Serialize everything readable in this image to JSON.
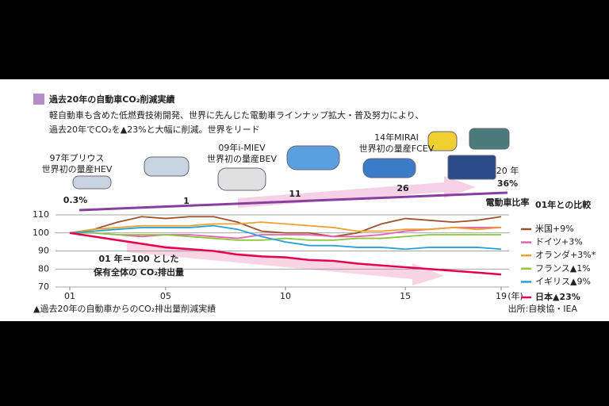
{
  "title": "過去20年の自動車CO₂削減実績",
  "subtitle": [
    "軽自動車も含めた低燃費技術開発、世界に先んじた電動車ラインナップ拡大・普及努力により、",
    "過去20年でCO₂を▲23%と大幅に削減。世界をリード"
  ],
  "cars": [
    {
      "lines": [
        "97年プリウス",
        "世界初の量産HEV"
      ]
    },
    {
      "lines": [
        "09年i-MIEV",
        "世界初の量産BEV"
      ]
    },
    {
      "lines": [
        "14年MIRAI",
        "世界初の量産FCEV"
      ]
    }
  ],
  "ev_ratio": {
    "label": "電動車比率",
    "points": [
      "0.3%",
      "1",
      "11",
      "26"
    ],
    "end": [
      "20 年",
      "36%"
    ]
  },
  "chart_data": {
    "type": "line",
    "x": [
      1,
      2,
      3,
      4,
      5,
      6,
      7,
      8,
      9,
      10,
      11,
      12,
      13,
      14,
      15,
      16,
      17,
      18,
      19
    ],
    "xlim": [
      1,
      19
    ],
    "xticks": [
      {
        "value": 1,
        "label": "01"
      },
      {
        "value": 5,
        "label": "05"
      },
      10,
      15,
      19
    ],
    "x_unit": "(年)",
    "ylim": [
      70,
      110
    ],
    "yticks": [
      70,
      80,
      90,
      100,
      110
    ],
    "grid": true,
    "legend_title": "01年との比較",
    "annotation": [
      "01 年＝100 とした",
      "保有全体の CO₂排出量"
    ],
    "series": [
      {
        "name": "米国+9%",
        "color": "#a0522d",
        "values": [
          100,
          102,
          106,
          109,
          108,
          109,
          109,
          106,
          101,
          100,
          100,
          98,
          100,
          105,
          108,
          107,
          106,
          107,
          109
        ]
      },
      {
        "name": "ドイツ+3%",
        "color": "#e860b0",
        "values": [
          100,
          100,
          99,
          98,
          99,
          99,
          98,
          97,
          99,
          99,
          99,
          98,
          98,
          99,
          101,
          102,
          103,
          103,
          103
        ]
      },
      {
        "name": "オランダ+3%*",
        "color": "#f0a030",
        "values": [
          100,
          102,
          103,
          104,
          104,
          104,
          105,
          105,
          106,
          105,
          104,
          103,
          101,
          101,
          102,
          102,
          103,
          102,
          103
        ]
      },
      {
        "name": "フランス▲1%",
        "color": "#8dc63f",
        "values": [
          100,
          100,
          99,
          99,
          99,
          98,
          97,
          96,
          96,
          97,
          96,
          96,
          97,
          97,
          98,
          99,
          99,
          99,
          99
        ]
      },
      {
        "name": "イギリス▲9%",
        "color": "#2aa0d8",
        "values": [
          100,
          101,
          102,
          103,
          103,
          103,
          104,
          102,
          98,
          95,
          93,
          93,
          92,
          92,
          91,
          92,
          92,
          92,
          91
        ]
      },
      {
        "name": "日本▲23%",
        "color": "#e6004c",
        "values": [
          100,
          98,
          96,
          94,
          92,
          91,
          90,
          88,
          87,
          86.5,
          85,
          84.5,
          83,
          82,
          81,
          80,
          79,
          78,
          77
        ]
      }
    ]
  },
  "footer": {
    "caption": "▲過去20年の自動車からのCO₂排出量削減実績",
    "source": "出所:自検協・IEA"
  }
}
